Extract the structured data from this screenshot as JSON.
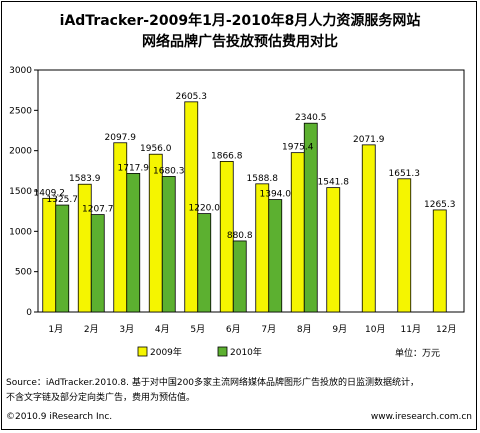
{
  "title_line1": "iAdTracker-2009年1月-2010年8月人力资源服务网站",
  "title_line2": "网络品牌广告投放预估费用对比",
  "unit_label": "单位：万元",
  "source_line1": "Source：iAdTracker.2010.8. 基于对中国200多家主流网络媒体品牌图形广告投放的日监测数据统计，",
  "source_line2": "不含文字链及部分定向类广告，费用为预估值。",
  "copyright": "©2010.9 iResearch Inc.",
  "website": "www.iresearch.com.cn",
  "colors": {
    "series_2009": "#f5f500",
    "series_2010": "#5cb030",
    "plot_bg": "#ffffff"
  },
  "chart_data": {
    "type": "bar",
    "categories": [
      "1月",
      "2月",
      "3月",
      "4月",
      "5月",
      "6月",
      "7月",
      "8月",
      "9月",
      "10月",
      "11月",
      "12月"
    ],
    "series": [
      {
        "name": "2009年",
        "values": [
          1409.2,
          1583.9,
          2097.9,
          1956.0,
          2605.3,
          1866.8,
          1588.8,
          1975.4,
          1541.8,
          2071.9,
          1651.3,
          1265.3
        ]
      },
      {
        "name": "2010年",
        "values": [
          1325.7,
          1207.7,
          1717.9,
          1680.3,
          1220.0,
          880.8,
          1394.0,
          2340.5,
          null,
          null,
          null,
          null
        ]
      }
    ],
    "y_ticks": [
      "0",
      "500",
      "1000",
      "1500",
      "2000",
      "2500",
      "3000"
    ],
    "ylim": [
      0,
      3000
    ],
    "grid": false,
    "legend_position": "bottom"
  }
}
